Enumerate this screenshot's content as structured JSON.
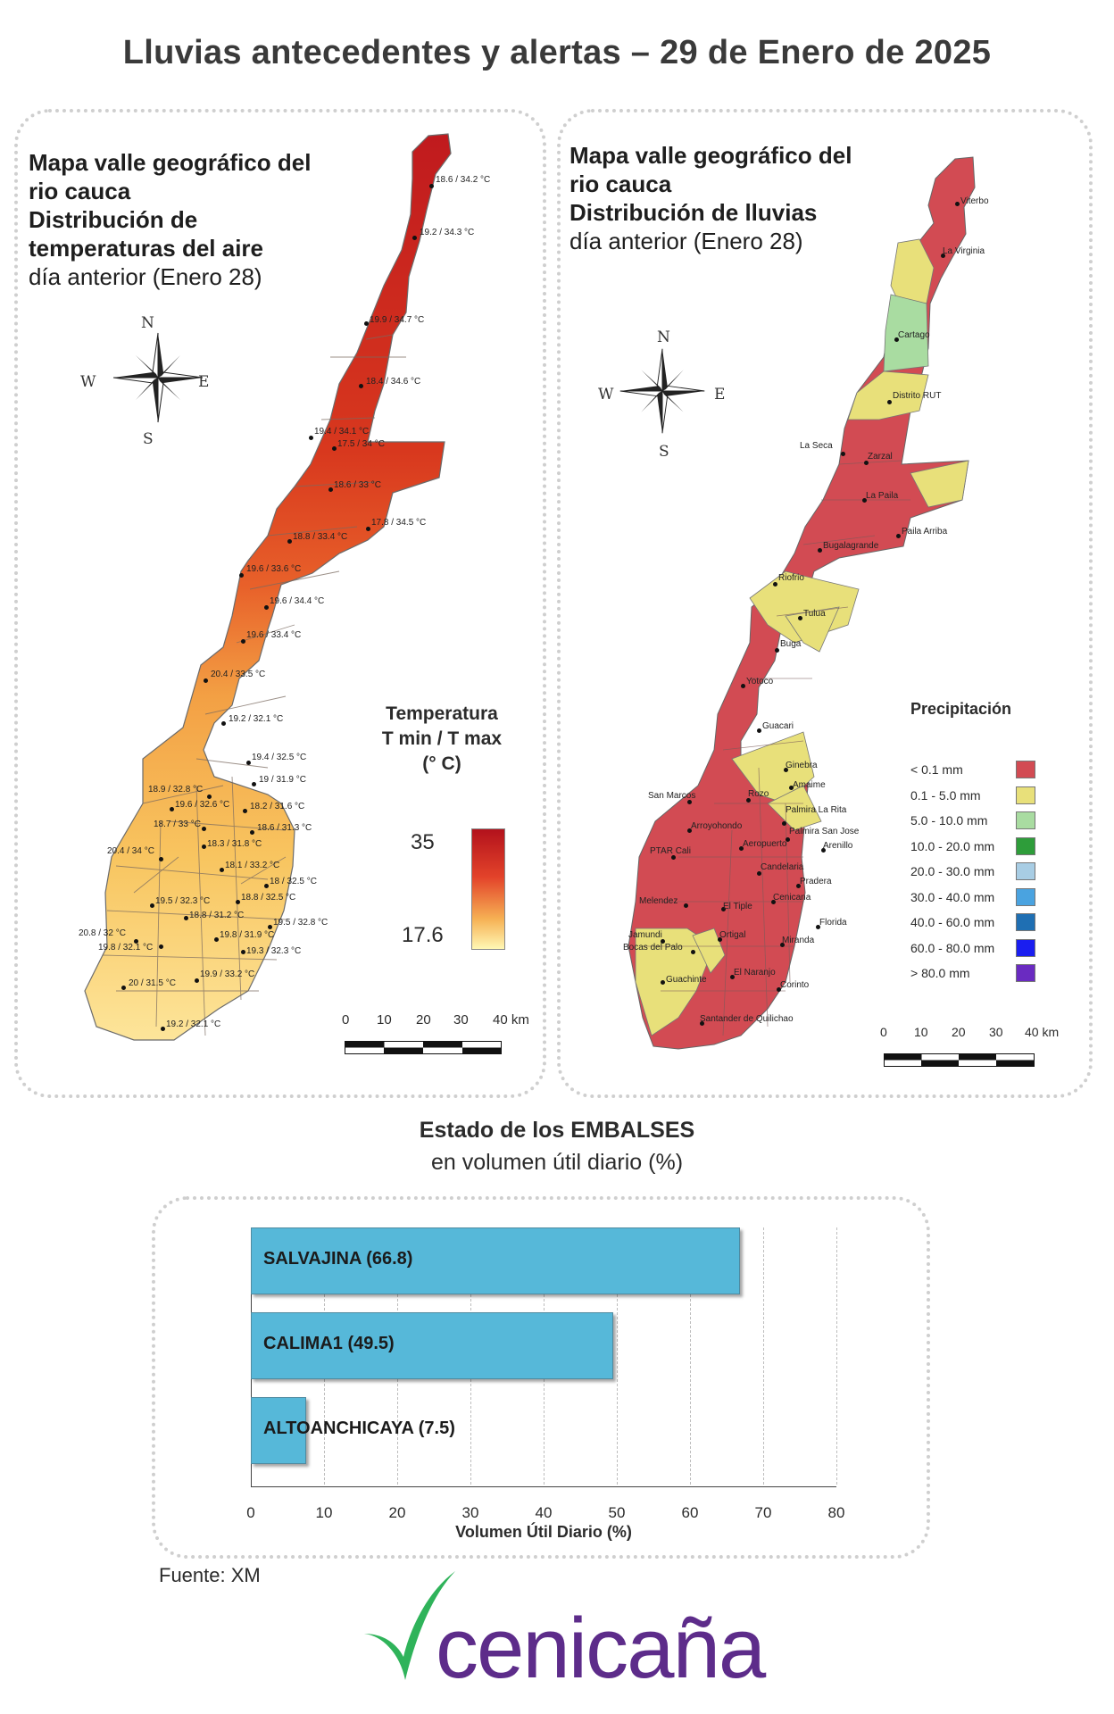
{
  "title": "Lluvias antecedentes y alertas – 29 de Enero de 2025",
  "left_map": {
    "line1": "Mapa valle geográfico del",
    "line2": "rio cauca",
    "line3": "Distribución de",
    "line4": "temperaturas del aire",
    "line5": "día anterior (Enero 28)",
    "compass": {
      "n": "N",
      "s": "S",
      "e": "E",
      "w": "W"
    },
    "legend_title_1": "Temperatura",
    "legend_title_2": "T min / T max",
    "legend_title_3": "(° C)",
    "legend_max": "35",
    "legend_min": "17.6",
    "scale": [
      "0",
      "10",
      "20",
      "30",
      "40 km"
    ],
    "stations": [
      "18.6 / 34.2 °C",
      "19.2 / 34.3 °C",
      "19.9 / 34.7 °C",
      "18.4 / 34.6 °C",
      "19.4 / 34.1 °C",
      "17.5 / 34 °C",
      "18.6 / 33 °C",
      "17.8 / 34.5 °C",
      "18.8 / 33.4 °C",
      "19.6 / 33.6 °C",
      "19.6 / 34.4 °C",
      "19.6 / 33.4 °C",
      "20.4 / 33.5 °C",
      "19.2 / 32.1 °C",
      "19.4 / 32.5 °C",
      "18.9 / 32.8 °C",
      "19 / 31.9 °C",
      "19.6 / 32.6 °C",
      "18.2 / 31.6 °C",
      "18.7 / 33 °C",
      "18.6 / 31.3 °C",
      "20.4 / 34 °C",
      "18.3 / 31.8 °C",
      "18.1 / 33.2 °C",
      "18 / 32.5 °C",
      "19.5 / 32.3 °C",
      "18.8 / 32.5 °C",
      "18.8 / 31.2 °C",
      "19.5 / 32.8 °C",
      "20.8 / 32 °C",
      "19.8 / 31.9 °C",
      "19.8 / 32.1 °C",
      "19.3 / 32.3 °C",
      "19.9 / 33.2 °C",
      "20 / 31.5 °C",
      "19.2 / 32.1 °C"
    ]
  },
  "right_map": {
    "line1": "Mapa valle geográfico del",
    "line2": "rio cauca",
    "line3": "Distribución de lluvias",
    "line4": "día anterior (Enero 28)",
    "compass": {
      "n": "N",
      "s": "S",
      "e": "E",
      "w": "W"
    },
    "legend_title": "Precipitación",
    "legend": [
      {
        "label": "< 0.1 mm",
        "color": "#d24b53"
      },
      {
        "label": "0.1 - 5.0 mm",
        "color": "#e8e07a"
      },
      {
        "label": "5.0 - 10.0 mm",
        "color": "#a9dca1"
      },
      {
        "label": "10.0 - 20.0 mm",
        "color": "#2e9d3a"
      },
      {
        "label": "20.0 - 30.0 mm",
        "color": "#a8cde4"
      },
      {
        "label": "30.0 - 40.0 mm",
        "color": "#4aa3e0"
      },
      {
        "label": "40.0 - 60.0 mm",
        "color": "#1f6fb3"
      },
      {
        "label": "60.0 - 80.0 mm",
        "color": "#1a1ef0"
      },
      {
        "label": "> 80.0 mm",
        "color": "#6a2bc1"
      }
    ],
    "scale": [
      "0",
      "10",
      "20",
      "30",
      "40 km"
    ],
    "places": [
      "Viterbo",
      "La Virginia",
      "Cartago",
      "Distrito RUT",
      "La Seca",
      "Zarzal",
      "La Paila",
      "Paila Arriba",
      "Bugalagrande",
      "Riofrio",
      "Tulua",
      "Buga",
      "Yotoco",
      "Guacari",
      "Ginebra",
      "San Marcos",
      "Rozo",
      "Amaime",
      "Arroyohondo",
      "Palmira La Rita",
      "Palmira San Jose",
      "PTAR Cali",
      "Aeropuerto",
      "Arenillo",
      "Candelaria",
      "Pradera",
      "Melendez",
      "El Tiple",
      "Cenicana",
      "Florida",
      "Jamundi",
      "Bocas del Palo",
      "Ortigal",
      "Miranda",
      "El Naranjo",
      "Guachinte",
      "Corinto",
      "Santander de Quilichao"
    ]
  },
  "reservoirs": {
    "title": "Estado de los EMBALSES",
    "subtitle": "en volumen útil diario (%)",
    "source": "Fuente: XM"
  },
  "chart_data": {
    "type": "bar",
    "orientation": "horizontal",
    "categories": [
      "SALVAJINA (66.8)",
      "CALIMA1 (49.5)",
      "ALTOANCHICAYA (7.5)"
    ],
    "values": [
      66.8,
      49.5,
      7.5
    ],
    "xlabel": "Volumen Útil Diario (%)",
    "xlim": [
      0,
      80
    ],
    "xticks": [
      "0",
      "10",
      "20",
      "30",
      "40",
      "50",
      "60",
      "70",
      "80"
    ],
    "bar_color": "#56b8d9",
    "grid": true
  },
  "logo": {
    "text": "cenicaña",
    "color": "#5d2c8a",
    "accent": "#2fb35a"
  }
}
